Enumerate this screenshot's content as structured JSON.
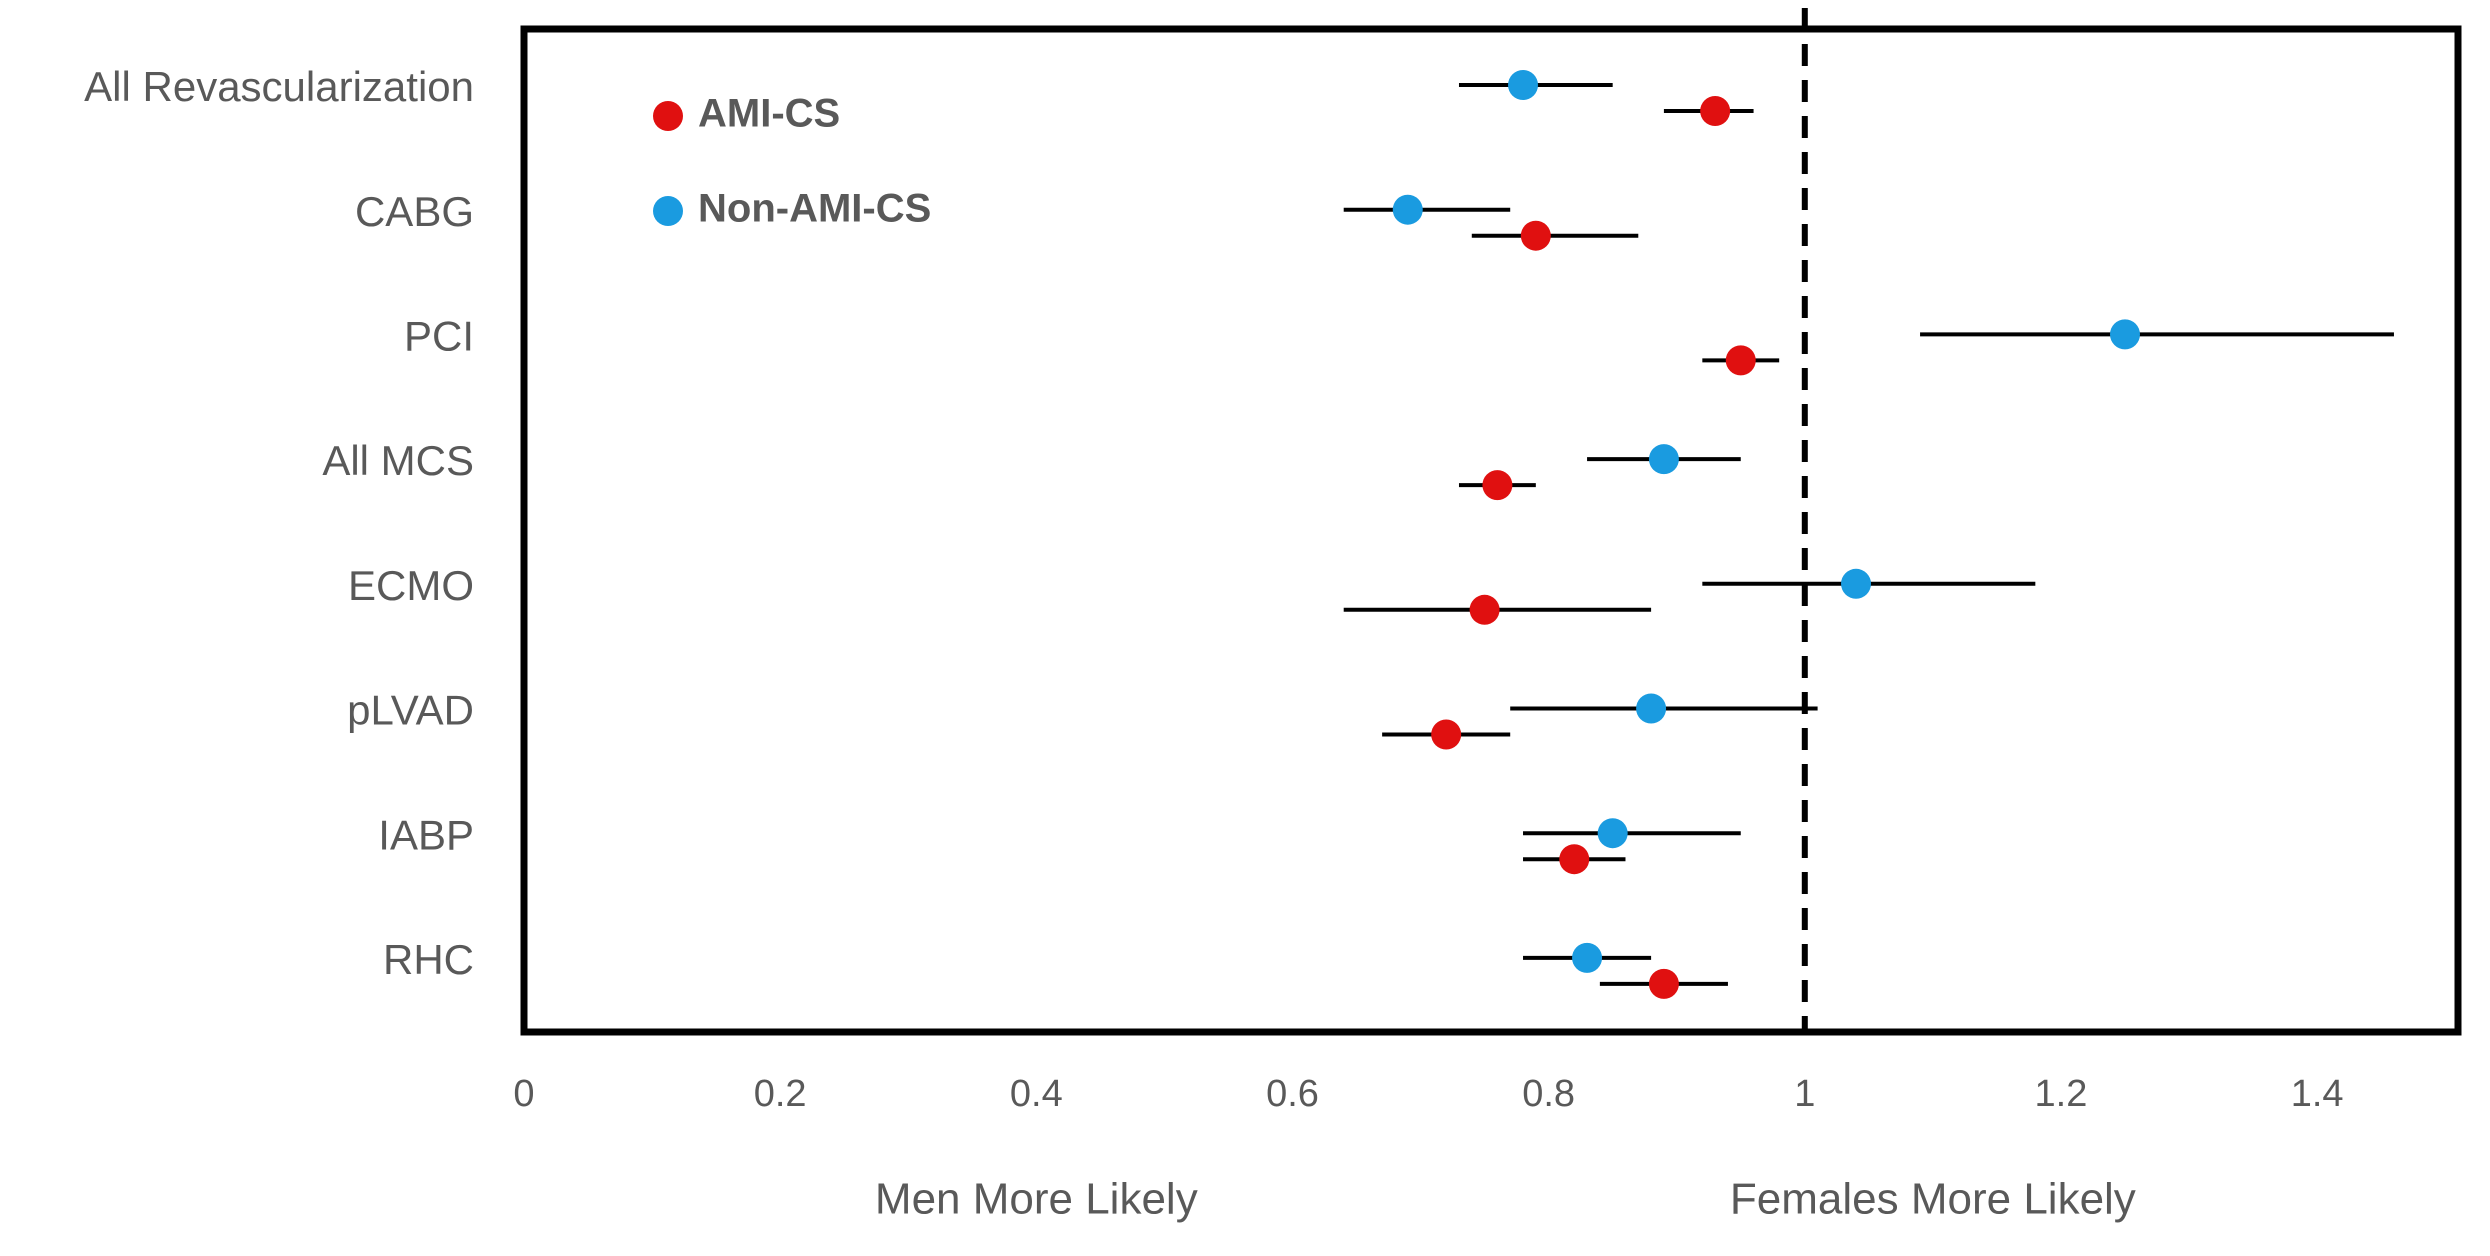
{
  "chart_data": {
    "type": "forest",
    "categories": [
      "All Revascularization",
      "CABG",
      "PCI",
      "All MCS",
      "ECMO",
      "pLVAD",
      "IABP",
      "RHC"
    ],
    "series": [
      {
        "name": "AMI-CS",
        "color": "#e01010",
        "values": [
          0.93,
          0.79,
          0.95,
          0.76,
          0.75,
          0.72,
          0.82,
          0.89
        ],
        "lower": [
          0.89,
          0.74,
          0.92,
          0.73,
          0.64,
          0.67,
          0.78,
          0.84
        ],
        "upper": [
          0.96,
          0.87,
          0.98,
          0.79,
          0.88,
          0.77,
          0.86,
          0.94
        ]
      },
      {
        "name": "Non-AMI-CS",
        "color": "#1a9be0",
        "values": [
          0.78,
          0.69,
          1.25,
          0.89,
          1.04,
          0.88,
          0.85,
          0.83
        ],
        "lower": [
          0.73,
          0.64,
          1.09,
          0.83,
          0.92,
          0.77,
          0.78,
          0.78
        ],
        "upper": [
          0.85,
          0.77,
          1.46,
          0.95,
          1.18,
          1.01,
          0.95,
          0.88
        ]
      }
    ],
    "xlim": [
      0,
      1.51
    ],
    "xticks": [
      0,
      0.2,
      0.4,
      0.6,
      0.8,
      1,
      1.2,
      1.4
    ],
    "reference_line": 1,
    "annotations": [
      {
        "text": "Men More Likely",
        "x": 0.4
      },
      {
        "text": "Females More Likely",
        "x": 1.1
      }
    ]
  }
}
